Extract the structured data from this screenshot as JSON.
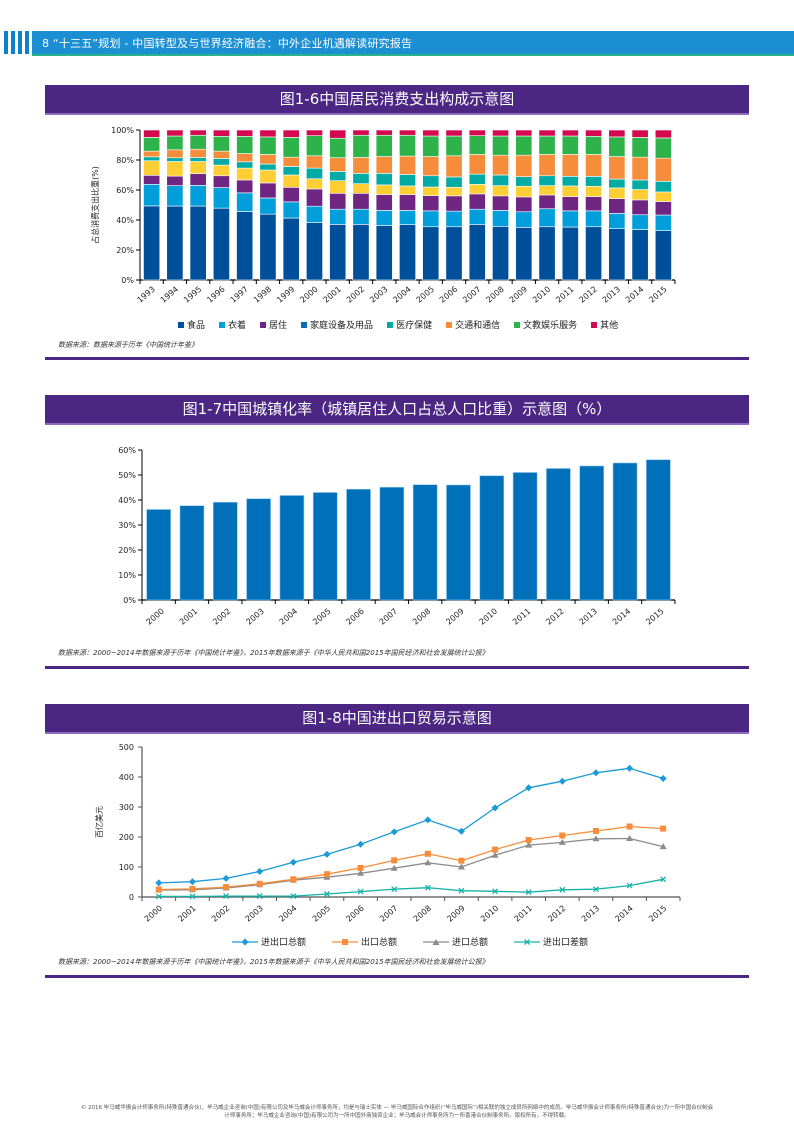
{
  "header": {
    "page_title": "8 “十三五”规划 - 中国转型及与世界经济融合：中外企业机遇解读研究报告"
  },
  "figures": [
    {
      "title": "图1-6中国居民消费支出构成示意图",
      "source": "数据来源：数据来源于历年《中国统计年鉴》"
    },
    {
      "title": "图1-7中国城镇化率（城镇居住人口占总人口比重）示意图（%）",
      "source": "数据来源：2000~2014年数据来源于历年《中国统计年鉴》，2015年数据来源于《中华人民共和国2015年国民经济和社会发展统计公报》"
    },
    {
      "title": "图1-8中国进出口贸易示意图",
      "source": "数据来源：2000~2014年数据来源于历年《中国统计年鉴》，2015年数据来源于《中华人民共和国2015年国民经济和社会发展统计公报》"
    }
  ],
  "footer": {
    "line1": "© 2016 毕马威华振会计师事务所(特殊普通合伙)、毕马威企业咨询(中国)有限公司及毕马威会计师事务所，均是与瑞士实体 — 毕马威国际合作组织(“毕马威国际”)相关联的独立成员所网络中的成员。毕马威华振会计师事务所(特殊普通合伙)为一所中国合伙制会",
    "line2": "计师事务所；毕马威企业咨询(中国)有限公司为一所中国外商独资企业；毕马威会计师事务所为一所香港合伙制事务所。版权所有，不得转载。"
  },
  "chart_data": [
    {
      "type": "bar",
      "stacked": true,
      "title": "图1-6中国居民消费支出构成示意图",
      "ylabel": "占总消费支出比重(%)",
      "xlabel": "",
      "ylim": [
        0,
        100
      ],
      "yticks": [
        "0%",
        "20%",
        "40%",
        "60%",
        "80%",
        "100%"
      ],
      "categories": [
        "1993",
        "1994",
        "1995",
        "1996",
        "1997",
        "1998",
        "1999",
        "2000",
        "2001",
        "2002",
        "2003",
        "2004",
        "2005",
        "2006",
        "2007",
        "2008",
        "2009",
        "2010",
        "2011",
        "2012",
        "2013",
        "2014",
        "2015"
      ],
      "legend_position": "bottom",
      "series": [
        {
          "name": "食品",
          "color": "#004f9a",
          "values": [
            49.4,
            49.3,
            49.3,
            47.9,
            45.7,
            43.9,
            41.3,
            38.4,
            37.1,
            37.1,
            36.4,
            36.9,
            35.5,
            35.5,
            37.1,
            35.8,
            35.1,
            35.5,
            35.3,
            35.5,
            34.2,
            33.6,
            32.9
          ]
        },
        {
          "name": "衣着",
          "color": "#009fdc",
          "values": [
            14.4,
            13.6,
            13.8,
            13.7,
            12.4,
            10.8,
            10.8,
            10.8,
            10.1,
            10.1,
            10.0,
            9.5,
            10.6,
            10.4,
            10.1,
            10.6,
            10.4,
            12.0,
            10.8,
            10.6,
            10.2,
            9.9,
            10.4
          ]
        },
        {
          "name": "居住",
          "color": "#6f2582",
          "values": [
            6.0,
            6.4,
            7.8,
            7.9,
            8.6,
            10.0,
            9.7,
            11.5,
            10.6,
            10.6,
            10.6,
            10.6,
            10.2,
            10.2,
            10.2,
            9.7,
            9.9,
            9.2,
            9.5,
            9.5,
            9.9,
            9.9,
            9.0
          ]
        },
        {
          "name": "家庭设备及用品",
          "color": "#ffce35",
          "legend_color": "#0a6ab4",
          "values": [
            9.7,
            9.7,
            8.1,
            7.1,
            7.9,
            8.6,
            8.2,
            6.8,
            8.4,
            6.4,
            6.4,
            5.7,
            5.7,
            5.7,
            6.4,
            6.8,
            7.1,
            6.2,
            7.1,
            6.9,
            7.1,
            6.9,
            6.4
          ]
        },
        {
          "name": "医疗保健",
          "color": "#00aaa5",
          "values": [
            2.6,
            2.5,
            2.7,
            4.4,
            4.2,
            4.0,
            5.7,
            7.1,
            6.2,
            6.9,
            7.7,
            7.7,
            7.5,
            6.9,
            6.8,
            7.1,
            6.4,
            6.6,
            6.4,
            6.6,
            5.9,
            6.4,
            7.1
          ]
        },
        {
          "name": "交通和通信",
          "color": "#f68d3a",
          "values": [
            3.8,
            5.3,
            5.5,
            4.9,
            5.5,
            6.4,
            6.2,
            8.2,
            9.1,
            10.6,
            11.2,
            12.2,
            12.8,
            14.1,
            13.1,
            13.2,
            14.3,
            14.2,
            14.6,
            14.6,
            15.0,
            15.2,
            15.4
          ]
        },
        {
          "name": "文教娱乐服务",
          "color": "#2eb24a",
          "values": [
            9.2,
            9.2,
            9.3,
            9.9,
            11.5,
            11.7,
            13.2,
            13.4,
            13.0,
            14.8,
            14.2,
            13.9,
            13.7,
            13.2,
            12.5,
            12.8,
            12.8,
            12.3,
            12.3,
            12.1,
            13.1,
            13.2,
            13.5
          ]
        },
        {
          "name": "其他",
          "color": "#d4094f",
          "values": [
            4.9,
            4.0,
            3.5,
            4.2,
            4.2,
            4.6,
            4.9,
            3.8,
            5.5,
            3.5,
            3.5,
            3.5,
            4.0,
            4.0,
            3.8,
            4.0,
            4.0,
            4.0,
            4.0,
            4.2,
            4.6,
            4.9,
            5.3
          ]
        }
      ]
    },
    {
      "type": "bar",
      "title": "图1-7中国城镇化率（城镇居住人口占总人口比重）示意图（%）",
      "xlabel": "",
      "ylabel": "",
      "ylim": [
        0,
        60
      ],
      "yticks": [
        "0%",
        "10%",
        "20%",
        "30%",
        "40%",
        "50%",
        "60%"
      ],
      "categories": [
        "2000",
        "2001",
        "2002",
        "2003",
        "2004",
        "2005",
        "2006",
        "2007",
        "2008",
        "2009",
        "2010",
        "2011",
        "2012",
        "2013",
        "2014",
        "2015"
      ],
      "values": [
        36.2,
        37.7,
        39.1,
        40.5,
        41.8,
        43.0,
        44.3,
        45.1,
        46.1,
        46.0,
        49.7,
        51.0,
        52.6,
        53.6,
        54.8,
        56.1
      ],
      "color": "#0070bb"
    },
    {
      "type": "line",
      "title": "图1-8中国进出口贸易示意图",
      "ylabel": "百亿美元",
      "xlabel": "",
      "ylim": [
        0,
        500
      ],
      "yticks": [
        "0",
        "100",
        "200",
        "300",
        "400",
        "500"
      ],
      "categories": [
        "2000",
        "2001",
        "2002",
        "2003",
        "2004",
        "2005",
        "2006",
        "2007",
        "2008",
        "2009",
        "2010",
        "2011",
        "2012",
        "2013",
        "2014",
        "2015"
      ],
      "legend_position": "bottom",
      "series": [
        {
          "name": "进出口总额",
          "color": "#1a9ad6",
          "marker": "diamond",
          "values": [
            47,
            51,
            62,
            85,
            116,
            142,
            176,
            217,
            257,
            219,
            297,
            364,
            386,
            414,
            429,
            395
          ]
        },
        {
          "name": "出口总额",
          "color": "#f68d3a",
          "marker": "square",
          "values": [
            25,
            27,
            33,
            44,
            59,
            76,
            97,
            122,
            144,
            121,
            158,
            190,
            205,
            220,
            235,
            228
          ]
        },
        {
          "name": "进口总额",
          "color": "#8c8c8c",
          "marker": "triangle",
          "values": [
            23,
            24,
            30,
            41,
            56,
            66,
            79,
            96,
            114,
            100,
            139,
            173,
            182,
            194,
            195,
            168
          ]
        },
        {
          "name": "进出口差额",
          "color": "#17b2a7",
          "marker": "x",
          "values": [
            2,
            2,
            3,
            3,
            3,
            10,
            18,
            26,
            31,
            21,
            19,
            16,
            24,
            26,
            38,
            59
          ]
        }
      ]
    }
  ]
}
